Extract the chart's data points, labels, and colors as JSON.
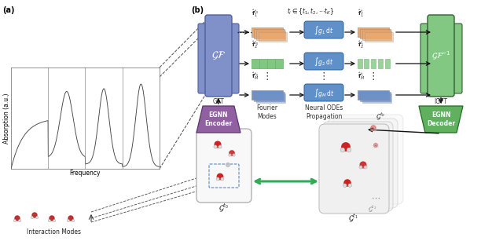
{
  "fig_width": 6.4,
  "fig_height": 3.07,
  "dpi": 100,
  "bg_color": "#ffffff",
  "label_a": "(a)",
  "label_b": "(b)",
  "spectrum_ylabel": "Absorption (a.u.)",
  "spectrum_xlabel": "Frequency",
  "interaction_label": "Interaction Modes",
  "gft_label": "GFT",
  "igft_label": "IGFT",
  "egnn_enc_label": "EGNN\nEncoder",
  "egnn_dec_label": "EGNN\nDecoder",
  "fourier_modes_label": "Fourier\nModes",
  "neural_odes_label": "Neural ODEs\nPropagation",
  "g0_label": "$\\mathcal{G}^{t_0}$",
  "g1_label": "$\\mathcal{G}^{t_1}$",
  "g2_label": "$\\mathcal{G}^{t_2}$",
  "gK_label": "$\\mathcal{G}^{t_K}$",
  "ti_label": "$t_i \\in \\{t_1, t_2, \\cdots t_K\\}$",
  "gf_color": "#8090c8",
  "gf_inv_color": "#82c882",
  "egnn_enc_color": "#9060a0",
  "egnn_dec_color": "#60b060",
  "fourier_row1_color": "#e8a870",
  "fourier_row2_color": "#80c880",
  "fourier_row3_color": "#7090c8",
  "ode_box_color": "#6090c8",
  "arrow_color": "#111111",
  "dashed_color": "#555555"
}
